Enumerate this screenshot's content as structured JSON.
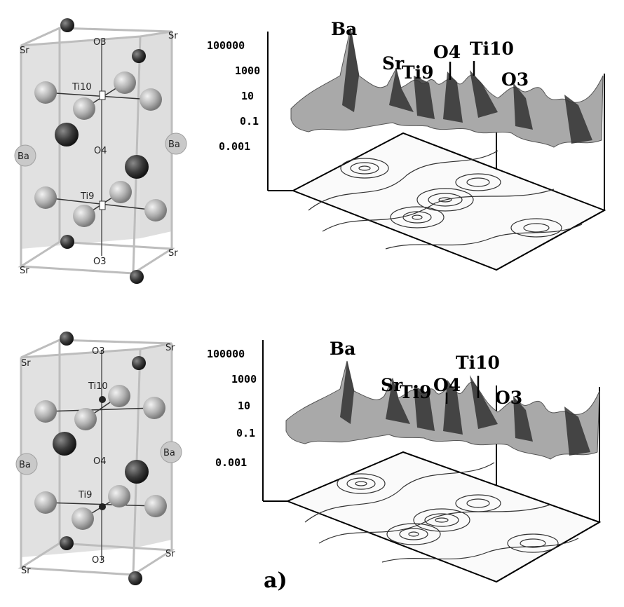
{
  "figure": {
    "panel_label": "a)",
    "top_row": {
      "crystal": {
        "labels": {
          "sr_tl": "Sr",
          "sr_tr": "Sr",
          "sr_bl": "Sr",
          "sr_br": "Sr",
          "o3_top": "O3",
          "o3_bottom": "O3",
          "o4": "O4",
          "ti10": "Ti10",
          "ti9": "Ti9",
          "ba_left": "Ba",
          "ba_right": "Ba"
        }
      },
      "plot": {
        "z_ticks": [
          "100000",
          "1000",
          "10",
          "0.1",
          "0.001"
        ],
        "peaks": {
          "ba": "Ba",
          "sr": "Sr",
          "ti9": "Ti9",
          "o4": "O4",
          "ti10": "Ti10",
          "o3": "O3"
        }
      }
    },
    "bottom_row": {
      "crystal": {
        "labels": {
          "sr_tl": "Sr",
          "sr_tr": "Sr",
          "sr_bl": "Sr",
          "sr_br": "Sr",
          "o3_top": "O3",
          "o3_bottom": "O3",
          "o4": "O4",
          "ti10": "Ti10",
          "ti9": "Ti9",
          "ba_left": "Ba",
          "ba_right": "Ba"
        }
      },
      "plot": {
        "z_ticks": [
          "100000",
          "1000",
          "10",
          "0.1",
          "0.001"
        ],
        "peaks": {
          "ba": "Ba",
          "sr": "Sr",
          "ti9": "Ti9",
          "o4": "O4",
          "ti10": "Ti10",
          "o3": "O3"
        }
      }
    }
  }
}
